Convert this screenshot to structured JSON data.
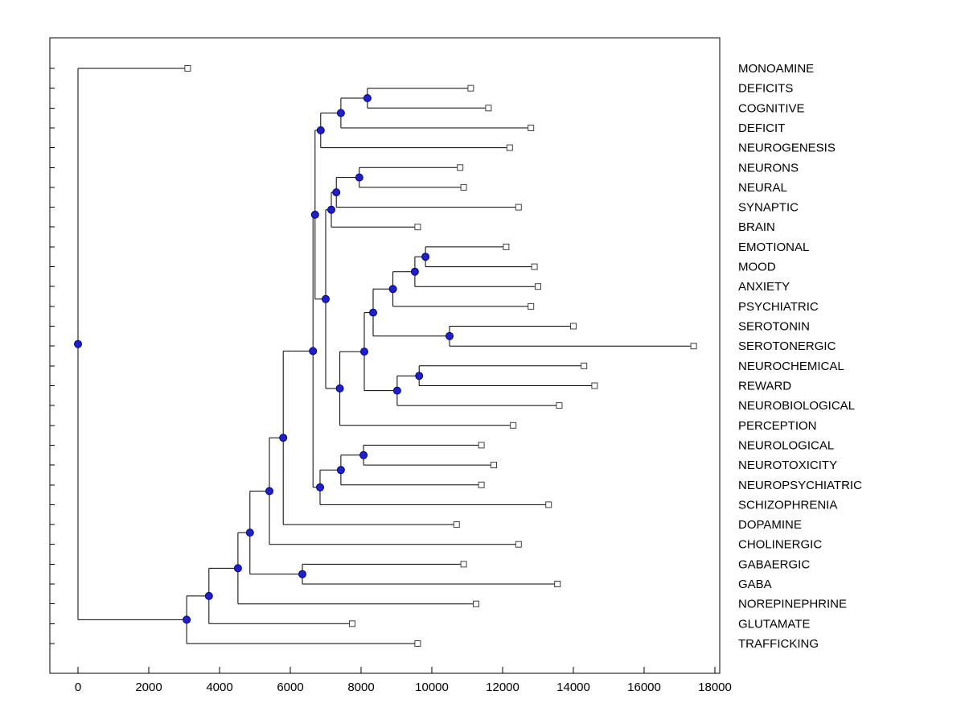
{
  "page": {
    "background": "#ffffff"
  },
  "chart_data": {
    "type": "dendrogram",
    "orientation": "horizontal-left-root",
    "title": "",
    "xlabel": "",
    "ylabel": "",
    "axis": {
      "x_ticks": [
        0,
        2000,
        4000,
        6000,
        8000,
        10000,
        12000,
        14000,
        16000,
        18000
      ],
      "x_min": -800,
      "x_max": 18150,
      "grid": false
    },
    "colors": {
      "line": "#000000",
      "node_fill": "#2020c8",
      "node_edge": "#000080",
      "leaf_fill": "#ffffff",
      "leaf_edge": "#404040",
      "text": "#000000"
    },
    "leaves": [
      {
        "label": "MONOAMINE",
        "value": 3100
      },
      {
        "label": "DEFICITS",
        "value": 11100
      },
      {
        "label": "COGNITIVE",
        "value": 11600
      },
      {
        "label": "DEFICIT",
        "value": 12800
      },
      {
        "label": "NEUROGENESIS",
        "value": 12200
      },
      {
        "label": "NEURONS",
        "value": 10800
      },
      {
        "label": "NEURAL",
        "value": 10900
      },
      {
        "label": "SYNAPTIC",
        "value": 12450
      },
      {
        "label": "BRAIN",
        "value": 9600
      },
      {
        "label": "EMOTIONAL",
        "value": 12100
      },
      {
        "label": "MOOD",
        "value": 12900
      },
      {
        "label": "ANXIETY",
        "value": 13000
      },
      {
        "label": "PSYCHIATRIC",
        "value": 12800
      },
      {
        "label": "SEROTONIN",
        "value": 14000
      },
      {
        "label": "SEROTONERGIC",
        "value": 17400
      },
      {
        "label": "NEUROCHEMICAL",
        "value": 14300
      },
      {
        "label": "REWARD",
        "value": 14600
      },
      {
        "label": "NEUROBIOLOGICAL",
        "value": 13600
      },
      {
        "label": "PERCEPTION",
        "value": 12300
      },
      {
        "label": "NEUROLOGICAL",
        "value": 11400
      },
      {
        "label": "NEUROTOXICITY",
        "value": 11750
      },
      {
        "label": "NEUROPSYCHIATRIC",
        "value": 11400
      },
      {
        "label": "SCHIZOPHRENIA",
        "value": 13300
      },
      {
        "label": "DOPAMINE",
        "value": 10700
      },
      {
        "label": "CHOLINERGIC",
        "value": 12450
      },
      {
        "label": "GABAERGIC",
        "value": 10900
      },
      {
        "label": "GABA",
        "value": 13550
      },
      {
        "label": "NOREPINEPHRINE",
        "value": 11250
      },
      {
        "label": "GLUTAMATE",
        "value": 7750
      },
      {
        "label": "TRAFFICKING",
        "value": 9600
      }
    ],
    "tree": {
      "dist": 0,
      "children": [
        {
          "leaf": 0
        },
        {
          "dist": 3070,
          "children": [
            {
              "dist": 3700,
              "children": [
                {
                  "dist": 4520,
                  "children": [
                    {
                      "dist": 4860,
                      "children": [
                        {
                          "dist": 5410,
                          "children": [
                            {
                              "dist": 5800,
                              "children": [
                                {
                                  "dist": 6640,
                                  "children": [
                                    {
                                      "dist": 6700,
                                      "children": [
                                        {
                                          "dist": 6860,
                                          "children": [
                                            {
                                              "dist": 7430,
                                              "children": [
                                                {
                                                  "dist": 8180,
                                                  "children": [
                                                    {
                                                      "leaf": 1
                                                    },
                                                    {
                                                      "leaf": 2
                                                    }
                                                  ]
                                                },
                                                {
                                                  "leaf": 3
                                                }
                                              ]
                                            },
                                            {
                                              "leaf": 4
                                            }
                                          ]
                                        },
                                        {
                                          "dist": 7000,
                                          "children": [
                                            {
                                              "dist": 7160,
                                              "children": [
                                                {
                                                  "dist": 7300,
                                                  "children": [
                                                    {
                                                      "dist": 7950,
                                                      "children": [
                                                        {
                                                          "leaf": 5
                                                        },
                                                        {
                                                          "leaf": 6
                                                        }
                                                      ]
                                                    },
                                                    {
                                                      "leaf": 7
                                                    }
                                                  ]
                                                },
                                                {
                                                  "leaf": 8
                                                }
                                              ]
                                            },
                                            {
                                              "dist": 7400,
                                              "children": [
                                                {
                                                  "dist": 8090,
                                                  "children": [
                                                    {
                                                      "dist": 8340,
                                                      "children": [
                                                        {
                                                          "dist": 8900,
                                                          "children": [
                                                            {
                                                              "dist": 9520,
                                                              "children": [
                                                                {
                                                                  "dist": 9820,
                                                                  "children": [
                                                                    {
                                                                      "leaf": 9
                                                                    },
                                                                    {
                                                                      "leaf": 10
                                                                    }
                                                                  ]
                                                                },
                                                                {
                                                                  "leaf": 11
                                                                }
                                                              ]
                                                            },
                                                            {
                                                              "leaf": 12
                                                            }
                                                          ]
                                                        },
                                                        {
                                                          "dist": 10500,
                                                          "children": [
                                                            {
                                                              "leaf": 13
                                                            },
                                                            {
                                                              "leaf": 14
                                                            }
                                                          ]
                                                        }
                                                      ]
                                                    },
                                                    {
                                                      "dist": 9020,
                                                      "children": [
                                                        {
                                                          "dist": 9640,
                                                          "children": [
                                                            {
                                                              "leaf": 15
                                                            },
                                                            {
                                                              "leaf": 16
                                                            }
                                                          ]
                                                        },
                                                        {
                                                          "leaf": 17
                                                        }
                                                      ]
                                                    }
                                                  ]
                                                },
                                                {
                                                  "leaf": 18
                                                }
                                              ]
                                            }
                                          ]
                                        }
                                      ]
                                    },
                                    {
                                      "dist": 6840,
                                      "children": [
                                        {
                                          "dist": 7430,
                                          "children": [
                                            {
                                              "dist": 8070,
                                              "children": [
                                                {
                                                  "leaf": 19
                                                },
                                                {
                                                  "leaf": 20
                                                }
                                              ]
                                            },
                                            {
                                              "leaf": 21
                                            }
                                          ]
                                        },
                                        {
                                          "leaf": 22
                                        }
                                      ]
                                    }
                                  ]
                                },
                                {
                                  "leaf": 23
                                }
                              ]
                            },
                            {
                              "leaf": 24
                            }
                          ]
                        },
                        {
                          "dist": 6340,
                          "children": [
                            {
                              "leaf": 25
                            },
                            {
                              "leaf": 26
                            }
                          ]
                        }
                      ]
                    },
                    {
                      "leaf": 27
                    }
                  ]
                },
                {
                  "leaf": 28
                }
              ]
            },
            {
              "leaf": 29
            }
          ]
        }
      ]
    }
  }
}
